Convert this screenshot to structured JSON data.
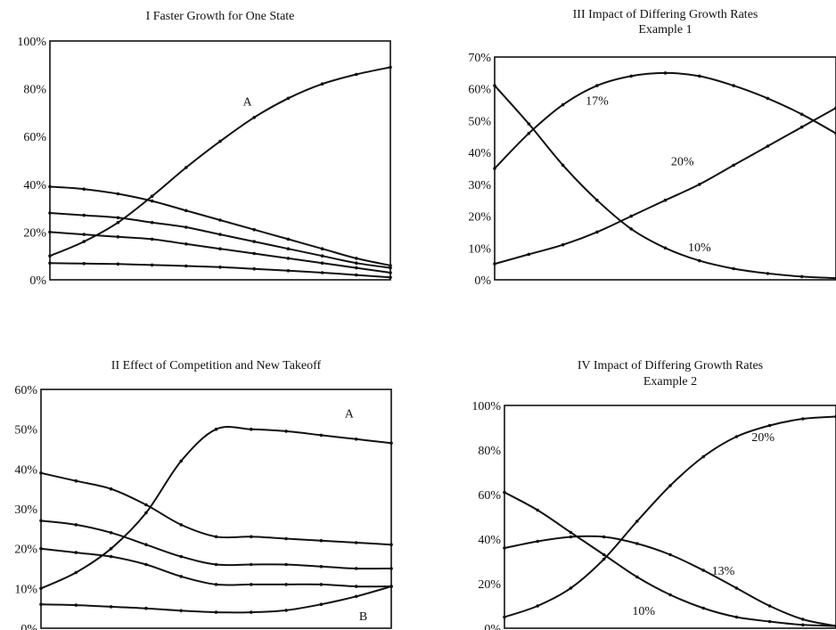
{
  "chart_data": [
    {
      "id": "I",
      "type": "line",
      "title": "I   Faster Growth for One State",
      "ylim": [
        0,
        100
      ],
      "yticks": [
        "0%",
        "20%",
        "40%",
        "60%",
        "80%",
        "100%"
      ],
      "x": [
        0,
        0.1,
        0.2,
        0.3,
        0.4,
        0.5,
        0.6,
        0.7,
        0.8,
        0.9,
        1.0
      ],
      "series": [
        {
          "name": "A",
          "values": [
            10,
            16,
            24,
            35,
            47,
            58,
            68,
            76,
            82,
            86,
            89
          ]
        },
        {
          "name": "",
          "values": [
            39,
            38,
            36,
            33,
            29,
            25,
            21,
            17,
            13,
            9,
            6
          ]
        },
        {
          "name": "",
          "values": [
            28,
            27,
            26,
            24,
            22,
            19,
            16,
            13,
            10,
            7,
            5
          ]
        },
        {
          "name": "",
          "values": [
            20,
            19,
            18,
            17,
            15,
            13,
            11,
            9,
            7,
            5,
            3
          ]
        },
        {
          "name": "",
          "values": [
            7,
            6.8,
            6.6,
            6.2,
            5.8,
            5.3,
            4.6,
            3.8,
            3,
            2,
            1
          ]
        }
      ],
      "annotations": [
        {
          "text": "A",
          "x": 0.58,
          "y": 73
        }
      ]
    },
    {
      "id": "II",
      "type": "line",
      "title": "II  Effect of Competition and New Takeoff",
      "ylim": [
        0,
        60
      ],
      "yticks": [
        "0%",
        "10%",
        "20%",
        "30%",
        "40%",
        "50%",
        "60%"
      ],
      "x": [
        0,
        0.1,
        0.2,
        0.3,
        0.4,
        0.5,
        0.6,
        0.7,
        0.8,
        0.9,
        1.0
      ],
      "series": [
        {
          "name": "A",
          "values": [
            10,
            14,
            20,
            29,
            42,
            50,
            50,
            49.5,
            48.5,
            47.5,
            46.5
          ]
        },
        {
          "name": "",
          "values": [
            39,
            37,
            35,
            31,
            26,
            23,
            23,
            22.5,
            22,
            21.5,
            21
          ]
        },
        {
          "name": "",
          "values": [
            27,
            26,
            24,
            21,
            18,
            16,
            16,
            16,
            15.5,
            15,
            15
          ]
        },
        {
          "name": "",
          "values": [
            20,
            19,
            18,
            16,
            13,
            11,
            11,
            11,
            11,
            10.5,
            10.5
          ]
        },
        {
          "name": "B",
          "values": [
            6,
            5.8,
            5.4,
            5,
            4.4,
            4,
            4,
            4.5,
            6,
            8,
            10.5
          ]
        }
      ],
      "annotations": [
        {
          "text": "A",
          "x": 0.88,
          "y": 53
        },
        {
          "text": "B",
          "x": 0.92,
          "y": 2
        }
      ]
    },
    {
      "id": "III",
      "type": "line",
      "title": "III  Impact of Differing Growth Rates",
      "subtitle": "Example 1",
      "ylim": [
        0,
        70
      ],
      "yticks": [
        "0%",
        "10%",
        "20%",
        "30%",
        "40%",
        "50%",
        "60%",
        "70%"
      ],
      "x": [
        0,
        0.1,
        0.2,
        0.3,
        0.4,
        0.5,
        0.6,
        0.7,
        0.8,
        0.9,
        1.0
      ],
      "series": [
        {
          "name": "17%",
          "values": [
            35,
            46,
            55,
            61,
            64,
            65,
            64,
            61,
            57,
            52,
            46
          ]
        },
        {
          "name": "10%",
          "values": [
            61,
            49,
            36,
            25,
            16,
            10,
            6,
            3.5,
            2,
            1,
            0.5
          ]
        },
        {
          "name": "20%",
          "values": [
            5,
            8,
            11,
            15,
            20,
            25,
            30,
            36,
            42,
            48,
            54
          ]
        }
      ],
      "annotations": [
        {
          "text": "17%",
          "x": 0.3,
          "y": 55
        },
        {
          "text": "20%",
          "x": 0.55,
          "y": 36
        },
        {
          "text": "10%",
          "x": 0.6,
          "y": 9
        }
      ]
    },
    {
      "id": "IV",
      "type": "line",
      "title": "IV  Impact of Differing Growth Rates",
      "subtitle": "Example 2",
      "ylim": [
        0,
        100
      ],
      "yticks": [
        "0%",
        "20%",
        "40%",
        "60%",
        "80%",
        "100%"
      ],
      "x": [
        0,
        0.1,
        0.2,
        0.3,
        0.4,
        0.5,
        0.6,
        0.7,
        0.8,
        0.9,
        1.0
      ],
      "series": [
        {
          "name": "20%",
          "values": [
            5,
            10,
            18,
            31,
            48,
            64,
            77,
            86,
            91,
            94,
            95
          ]
        },
        {
          "name": "10%",
          "values": [
            61,
            53,
            43,
            33,
            23,
            15,
            9,
            5,
            3,
            1.5,
            1
          ]
        },
        {
          "name": "13%",
          "values": [
            36,
            39,
            41,
            41,
            38,
            33,
            26,
            18,
            10,
            4,
            1
          ]
        }
      ],
      "annotations": [
        {
          "text": "20%",
          "x": 0.78,
          "y": 84
        },
        {
          "text": "13%",
          "x": 0.66,
          "y": 24
        },
        {
          "text": "10%",
          "x": 0.42,
          "y": 6
        }
      ]
    }
  ]
}
